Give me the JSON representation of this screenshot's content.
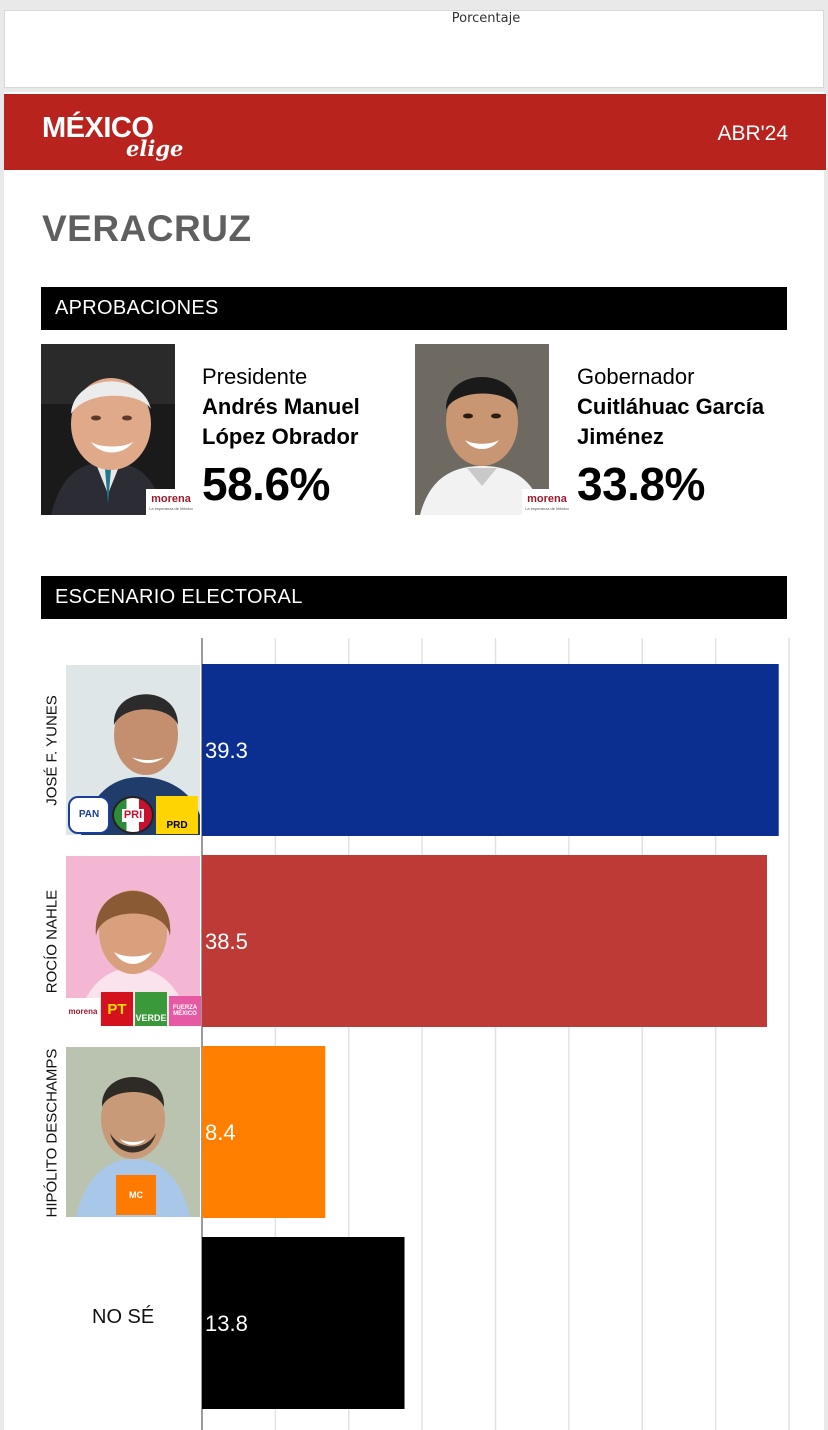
{
  "top_card": {
    "axis_label": "Porcentaje"
  },
  "header": {
    "logo_word": "MÉXICO",
    "logo_sub": "elige",
    "date": "ABR'24",
    "bg_color": "#b8231e"
  },
  "state": "VERACRUZ",
  "approvals": {
    "heading": "APROBACIONES",
    "items": [
      {
        "role": "Presidente",
        "name_line1": "Andrés Manuel",
        "name_line2": "López Obrador",
        "pct": "58.6%",
        "party": "morena",
        "party_tagline": "La esperanza de México"
      },
      {
        "role": "Gobernador",
        "name_line1": "Cuitláhuac García",
        "name_line2": "Jiménez",
        "pct": "33.8%",
        "party": "morena",
        "party_tagline": "La esperanza de México"
      }
    ]
  },
  "electoral": {
    "heading": "ESCENARIO ELECTORAL",
    "parties": {
      "yunes": [
        "PAN",
        "PRI",
        "PRD"
      ],
      "nahle": [
        "morena",
        "PT",
        "VERDE",
        "FUERZA MÉXICO"
      ],
      "deschamps": [
        "MC"
      ]
    }
  },
  "chart_data": {
    "type": "bar",
    "orientation": "horizontal",
    "categories": [
      "JOSÉ F. YUNES",
      "ROCÍO NAHLE",
      "HIPÓLITO DESCHAMPS",
      "NO SÉ"
    ],
    "values": [
      39.3,
      38.5,
      8.4,
      13.8
    ],
    "value_labels": [
      "39.3",
      "38.5",
      "8.4",
      "13.8"
    ],
    "colors": [
      "#0b2f91",
      "#bd3a36",
      "#ff8000",
      "#000000"
    ],
    "xlabel": "Porcentaje",
    "xlim": [
      0,
      40
    ],
    "grid": true
  }
}
